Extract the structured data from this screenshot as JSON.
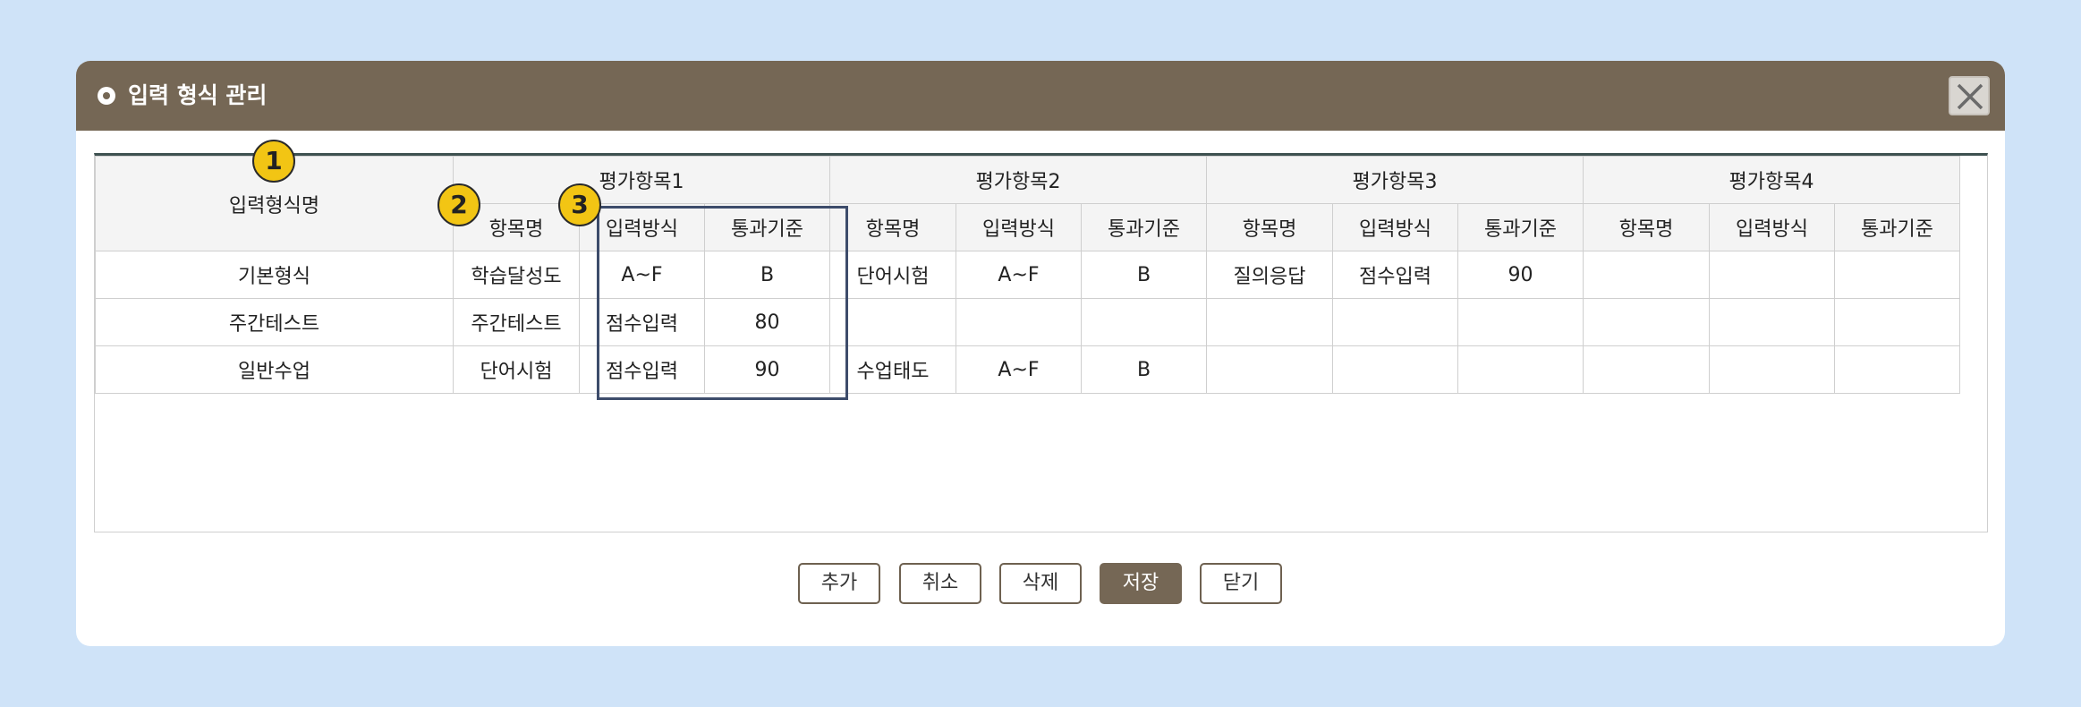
{
  "dialog": {
    "title": "입력 형식 관리",
    "close_icon": "close-icon"
  },
  "table": {
    "name_header": "입력형식명",
    "groups": [
      "평가항목1",
      "평가항목2",
      "평가항목3",
      "평가항목4"
    ],
    "sub_headers": [
      "항목명",
      "입력방식",
      "통과기준"
    ],
    "rows": [
      {
        "name": "기본형식",
        "cells": [
          "학습달성도",
          "A~F",
          "B",
          "단어시험",
          "A~F",
          "B",
          "질의응답",
          "점수입력",
          "90",
          "",
          "",
          ""
        ]
      },
      {
        "name": "주간테스트",
        "cells": [
          "주간테스트",
          "점수입력",
          "80",
          "",
          "",
          "",
          "",
          "",
          "",
          "",
          "",
          ""
        ]
      },
      {
        "name": "일반수업",
        "cells": [
          "단어시험",
          "점수입력",
          "90",
          "수업태도",
          "A~F",
          "B",
          "",
          "",
          "",
          "",
          "",
          ""
        ]
      }
    ]
  },
  "markers": [
    "1",
    "2",
    "3"
  ],
  "buttons": {
    "add": "추가",
    "cancel": "취소",
    "delete": "삭제",
    "save": "저장",
    "close": "닫기"
  },
  "colors": {
    "titlebar": "#756755",
    "background": "#cfe3f8",
    "marker": "#f2c514",
    "highlight": "#3d4c6b"
  }
}
